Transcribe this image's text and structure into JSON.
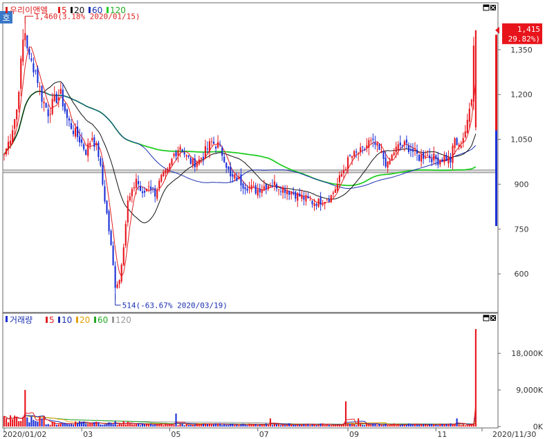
{
  "chart_data": {
    "type": "candlestick",
    "title": "우리이앤엘",
    "price_legend": {
      "name": "우리이앤엘",
      "moving_averages": [
        {
          "period": "5",
          "color": "#e02020"
        },
        {
          "period": "20",
          "color": "#111111"
        },
        {
          "period": "60",
          "color": "#1a2fb0"
        },
        {
          "period": "120",
          "color": "#22cc22"
        }
      ]
    },
    "volume_legend": {
      "name": "거래량",
      "moving_averages": [
        {
          "period": "5",
          "color": "#e02020"
        },
        {
          "period": "10",
          "color": "#1a2fb0"
        },
        {
          "period": "20",
          "color": "#e0a000"
        },
        {
          "period": "60",
          "color": "#22aa22"
        },
        {
          "period": "120",
          "color": "#999999"
        }
      ]
    },
    "side_icon_label": "호",
    "ylim_price": [
      480,
      1470
    ],
    "price_ticks": [
      "1,350",
      "1,200",
      "1,050",
      "900",
      "750",
      "600"
    ],
    "price_tick_values": [
      1350,
      1200,
      1050,
      900,
      750,
      600
    ],
    "ylim_volume": [
      0,
      25000
    ],
    "volume_ticks": [
      "18,000K",
      "9,000K",
      "0K"
    ],
    "volume_tick_values": [
      18000,
      9000,
      0
    ],
    "x_ticks": [
      "2020/01/02",
      "03",
      "05",
      "07",
      "09",
      "11",
      "2020/11/30"
    ],
    "x_tick_positions": [
      0,
      37,
      79,
      121,
      164,
      206,
      228
    ],
    "n_days": 230,
    "high_annotation": {
      "text": "1,460(3.18% 2020/01/15)",
      "day": 10,
      "value": 1460
    },
    "low_annotation": {
      "text": "514(-63.67% 2020/03/19)",
      "day": 53,
      "value": 514
    },
    "last_price": {
      "text": "1,415",
      "change": "( 29.82%)",
      "value": 1415
    },
    "horizontal_band": {
      "value": 943
    },
    "close_anchors": [
      [
        0,
        1000
      ],
      [
        3,
        1060
      ],
      [
        6,
        1150
      ],
      [
        9,
        1380
      ],
      [
        10,
        1410
      ],
      [
        12,
        1320
      ],
      [
        15,
        1280
      ],
      [
        18,
        1190
      ],
      [
        21,
        1140
      ],
      [
        24,
        1180
      ],
      [
        27,
        1200
      ],
      [
        30,
        1120
      ],
      [
        33,
        1080
      ],
      [
        36,
        1050
      ],
      [
        39,
        1010
      ],
      [
        42,
        1060
      ],
      [
        45,
        1000
      ],
      [
        47,
        900
      ],
      [
        49,
        800
      ],
      [
        51,
        690
      ],
      [
        53,
        560
      ],
      [
        55,
        580
      ],
      [
        57,
        700
      ],
      [
        59,
        840
      ],
      [
        61,
        870
      ],
      [
        63,
        920
      ],
      [
        66,
        860
      ],
      [
        69,
        900
      ],
      [
        72,
        870
      ],
      [
        75,
        920
      ],
      [
        78,
        940
      ],
      [
        81,
        1000
      ],
      [
        84,
        1030
      ],
      [
        87,
        990
      ],
      [
        90,
        970
      ],
      [
        93,
        980
      ],
      [
        96,
        1010
      ],
      [
        99,
        1040
      ],
      [
        102,
        1030
      ],
      [
        105,
        990
      ],
      [
        108,
        920
      ],
      [
        111,
        920
      ],
      [
        114,
        900
      ],
      [
        117,
        890
      ],
      [
        120,
        880
      ],
      [
        123,
        890
      ],
      [
        126,
        900
      ],
      [
        129,
        900
      ],
      [
        132,
        890
      ],
      [
        135,
        880
      ],
      [
        138,
        870
      ],
      [
        141,
        860
      ],
      [
        144,
        850
      ],
      [
        147,
        840
      ],
      [
        150,
        840
      ],
      [
        153,
        850
      ],
      [
        156,
        860
      ],
      [
        159,
        900
      ],
      [
        162,
        950
      ],
      [
        165,
        990
      ],
      [
        168,
        1000
      ],
      [
        171,
        1010
      ],
      [
        174,
        1040
      ],
      [
        177,
        1030
      ],
      [
        180,
        1000
      ],
      [
        183,
        960
      ],
      [
        186,
        1010
      ],
      [
        189,
        1030
      ],
      [
        192,
        1030
      ],
      [
        195,
        1010
      ],
      [
        198,
        990
      ],
      [
        201,
        1000
      ],
      [
        204,
        990
      ],
      [
        207,
        980
      ],
      [
        210,
        990
      ],
      [
        213,
        980
      ],
      [
        215,
        1050
      ],
      [
        217,
        1020
      ],
      [
        219,
        1060
      ],
      [
        221,
        1100
      ],
      [
        223,
        1200
      ],
      [
        224,
        1380
      ],
      [
        225,
        1415
      ]
    ],
    "volume_spikes": [
      [
        10,
        9000
      ],
      [
        82,
        3200
      ],
      [
        127,
        2000
      ],
      [
        163,
        6200
      ],
      [
        169,
        2000
      ],
      [
        216,
        2000
      ],
      [
        225,
        24000
      ]
    ],
    "ma_colors": {
      "ma5": "#e02020",
      "ma20": "#111111",
      "ma60": "#1a2fb0",
      "ma120": "#22cc22"
    },
    "up_color": "#e8141b",
    "down_color": "#1c2fd6"
  }
}
